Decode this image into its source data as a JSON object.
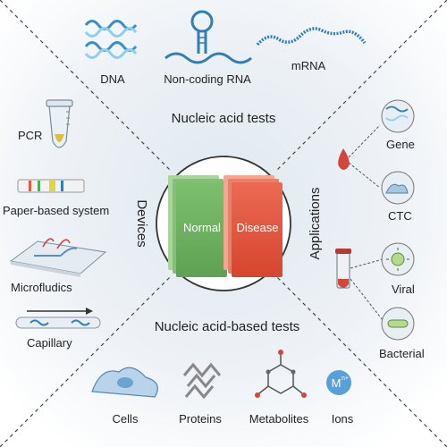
{
  "sections": {
    "top": "Nucleic acid tests",
    "bottom": "Nucleic acid-based tests",
    "left": "Devices",
    "right": "Applications"
  },
  "top_items": [
    "DNA",
    "Non-coding RNA",
    "mRNA"
  ],
  "left_items": [
    "PCR",
    "Paper-based system",
    "Microfludics",
    "Capillary"
  ],
  "right_items": [
    "Gene",
    "CTC",
    "Viral",
    "Bacterial"
  ],
  "bottom_items": [
    "Cells",
    "Proteins",
    "Metabolites",
    "Ions"
  ],
  "ion_symbol": "M",
  "ion_charge": "n+",
  "center": {
    "normal": "Normal",
    "disease": "Disease"
  },
  "colors": {
    "normal_green": "#6aae5e",
    "disease_red": "#e2553f",
    "dna_blue": "#2f7fb5",
    "background_top": "#e9f0f6",
    "background_bottom": "#f3f3f1"
  }
}
